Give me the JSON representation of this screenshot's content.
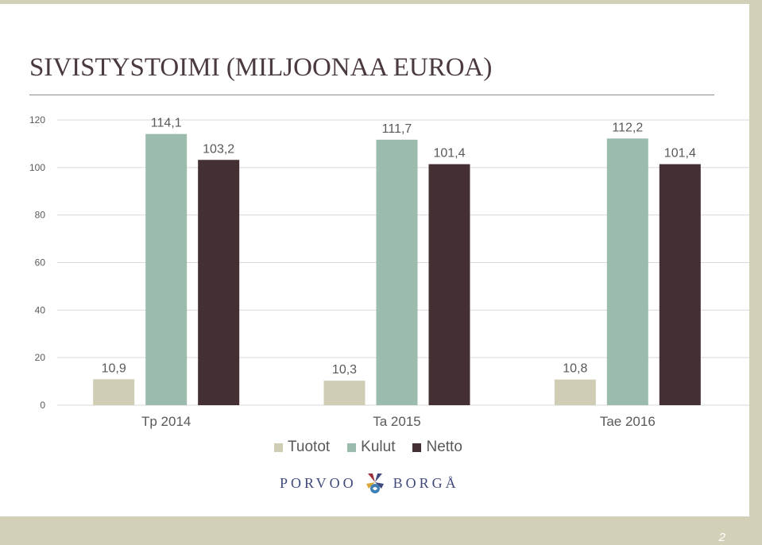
{
  "slide": {
    "title": "SIVISTYSTOIMI (MILJOONAA EUROA)",
    "page_number": "2"
  },
  "logo": {
    "left_text": "PORVOO",
    "right_text": "BORGÅ",
    "icon": "porvoo-borga-emblem-icon"
  },
  "colors": {
    "tuotot": "#cfcdb3",
    "kulut": "#9bbbad",
    "netto": "#442f33",
    "gridline": "#d9d9d9",
    "tick_label": "#595959"
  },
  "chart_data": {
    "type": "bar",
    "title": "SIVISTYSTOIMI (MILJOONAA EUROA)",
    "categories": [
      "Tp 2014",
      "Ta 2015",
      "Tae 2016"
    ],
    "series": [
      {
        "name": "Tuotot",
        "values": [
          10.9,
          10.3,
          10.8
        ],
        "labels": [
          "10,9",
          "10,3",
          "10,8"
        ]
      },
      {
        "name": "Kulut",
        "values": [
          114.1,
          111.7,
          112.2
        ],
        "labels": [
          "114,1",
          "111,7",
          "112,2"
        ]
      },
      {
        "name": "Netto",
        "values": [
          103.2,
          101.4,
          101.4
        ],
        "labels": [
          "103,2",
          "101,4",
          "101,4"
        ]
      }
    ],
    "ylim": [
      0,
      120
    ],
    "yticks": [
      0,
      20,
      40,
      60,
      80,
      100,
      120
    ],
    "grid": true,
    "legend_position": "bottom"
  }
}
